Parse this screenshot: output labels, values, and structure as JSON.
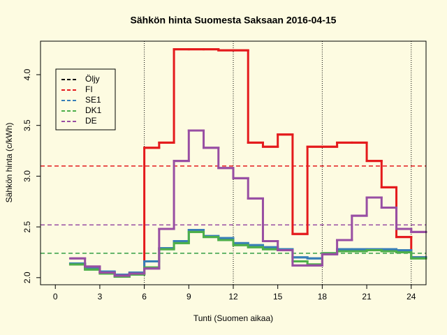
{
  "chart_data": {
    "type": "step",
    "title": "Sähkön hinta Suomesta Saksaan 2016-04-15",
    "x_label": "Tunti (Suomen aikaa)",
    "y_label": "Sähkön hinta (c/kWh)",
    "x": [
      1,
      2,
      3,
      4,
      5,
      6,
      7,
      8,
      9,
      10,
      11,
      12,
      13,
      14,
      15,
      16,
      17,
      18,
      19,
      20,
      21,
      22,
      23,
      24
    ],
    "series": [
      {
        "name": "Öljy",
        "color": "#000000",
        "values": [
          null,
          null,
          null,
          null,
          null,
          null,
          null,
          null,
          null,
          null,
          null,
          null,
          null,
          null,
          null,
          null,
          null,
          null,
          null,
          null,
          null,
          null,
          null,
          null
        ]
      },
      {
        "name": "FI",
        "color": "#e41a1c",
        "values": [
          2.13,
          2.09,
          2.05,
          2.02,
          2.04,
          3.28,
          3.33,
          4.25,
          4.25,
          4.25,
          4.24,
          4.24,
          3.33,
          3.29,
          3.41,
          2.43,
          3.29,
          3.29,
          3.33,
          3.33,
          3.15,
          2.89,
          2.4,
          2.2
        ],
        "average": 3.1
      },
      {
        "name": "SE1",
        "color": "#377eb8",
        "values": [
          2.14,
          2.1,
          2.06,
          2.03,
          2.05,
          2.16,
          2.29,
          2.36,
          2.47,
          2.41,
          2.39,
          2.34,
          2.32,
          2.3,
          2.28,
          2.2,
          2.19,
          2.24,
          2.28,
          2.28,
          2.28,
          2.28,
          2.27,
          2.2
        ],
        "average": 2.24
      },
      {
        "name": "DK1",
        "color": "#4daf4a",
        "values": [
          2.13,
          2.08,
          2.04,
          2.01,
          2.03,
          2.1,
          2.28,
          2.34,
          2.45,
          2.4,
          2.37,
          2.32,
          2.3,
          2.28,
          2.27,
          2.16,
          2.13,
          2.24,
          2.26,
          2.26,
          2.27,
          2.26,
          2.25,
          2.19
        ],
        "average": 2.24
      },
      {
        "name": "DE",
        "color": "#984ea3",
        "values": [
          2.19,
          2.11,
          2.05,
          2.02,
          2.04,
          2.09,
          2.48,
          3.15,
          3.45,
          3.28,
          3.08,
          2.98,
          2.78,
          2.36,
          2.27,
          2.12,
          2.12,
          2.23,
          2.37,
          2.61,
          2.79,
          2.69,
          2.48,
          2.45
        ],
        "average": 2.52
      }
    ],
    "xlim": [
      -1,
      25
    ],
    "xticks": [
      0,
      3,
      6,
      9,
      12,
      15,
      18,
      21,
      24
    ],
    "ylim": [
      1.93,
      4.33
    ],
    "yticks": [
      {
        "value": 2,
        "label": "2.0"
      },
      2.5,
      {
        "value": 3,
        "label": "3.0"
      },
      3.5,
      {
        "value": 4,
        "label": "4.0"
      }
    ],
    "vlines": [
      6,
      12,
      18,
      24
    ],
    "legend": "top-left"
  }
}
